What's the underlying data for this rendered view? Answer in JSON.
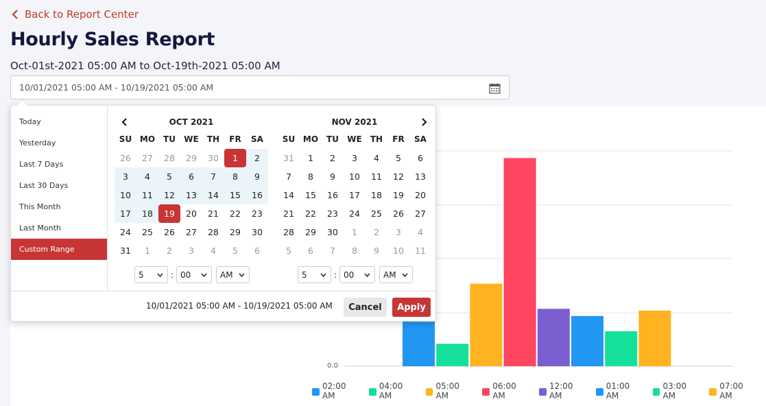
{
  "header": {
    "back_label": "Back to Report Center",
    "title": "Hourly Sales Report",
    "subtitle": "Oct-01st-2021 05:00 AM to Oct-19th-2021 05:00 AM",
    "date_range_value": "10/01/2021 05:00 AM - 10/19/2021 05:00 AM",
    "icons": {
      "back": "chevron-left-icon",
      "calendar": "calendar-icon"
    }
  },
  "picker": {
    "ranges": [
      "Today",
      "Yesterday",
      "Last 7 Days",
      "Last 30 Days",
      "This Month",
      "Last Month",
      "Custom Range"
    ],
    "active_range": "Custom Range",
    "weekdays": [
      "SU",
      "MO",
      "TU",
      "WE",
      "TH",
      "FR",
      "SA"
    ],
    "left_month": {
      "label": "OCT 2021",
      "days": [
        [
          "26",
          "off"
        ],
        [
          "27",
          "off"
        ],
        [
          "28",
          "off"
        ],
        [
          "29",
          "off"
        ],
        [
          "30",
          "off"
        ],
        [
          "1",
          "sel"
        ],
        [
          "2",
          "inrange"
        ],
        [
          "3",
          "inrange"
        ],
        [
          "4",
          "inrange"
        ],
        [
          "5",
          "inrange"
        ],
        [
          "6",
          "inrange"
        ],
        [
          "7",
          "inrange"
        ],
        [
          "8",
          "inrange"
        ],
        [
          "9",
          "inrange"
        ],
        [
          "10",
          "inrange"
        ],
        [
          "11",
          "inrange"
        ],
        [
          "12",
          "inrange"
        ],
        [
          "13",
          "inrange"
        ],
        [
          "14",
          "inrange"
        ],
        [
          "15",
          "inrange"
        ],
        [
          "16",
          "inrange"
        ],
        [
          "17",
          "inrange"
        ],
        [
          "18",
          "inrange"
        ],
        [
          "19",
          "sel"
        ],
        [
          "20",
          ""
        ],
        [
          "21",
          ""
        ],
        [
          "22",
          ""
        ],
        [
          "23",
          ""
        ],
        [
          "24",
          ""
        ],
        [
          "25",
          ""
        ],
        [
          "26",
          ""
        ],
        [
          "27",
          ""
        ],
        [
          "28",
          ""
        ],
        [
          "29",
          ""
        ],
        [
          "30",
          ""
        ],
        [
          "31",
          ""
        ],
        [
          "1",
          "off"
        ],
        [
          "2",
          "off"
        ],
        [
          "3",
          "off"
        ],
        [
          "4",
          "off"
        ],
        [
          "5",
          "off"
        ],
        [
          "6",
          "off"
        ]
      ],
      "hour": "5",
      "minute": "00",
      "ampm": "AM"
    },
    "right_month": {
      "label": "NOV 2021",
      "days": [
        [
          "31",
          "off"
        ],
        [
          "1",
          ""
        ],
        [
          "2",
          ""
        ],
        [
          "3",
          ""
        ],
        [
          "4",
          ""
        ],
        [
          "5",
          ""
        ],
        [
          "6",
          ""
        ],
        [
          "7",
          ""
        ],
        [
          "8",
          ""
        ],
        [
          "9",
          ""
        ],
        [
          "10",
          ""
        ],
        [
          "11",
          ""
        ],
        [
          "12",
          ""
        ],
        [
          "13",
          ""
        ],
        [
          "14",
          ""
        ],
        [
          "15",
          ""
        ],
        [
          "16",
          ""
        ],
        [
          "17",
          ""
        ],
        [
          "18",
          ""
        ],
        [
          "19",
          ""
        ],
        [
          "20",
          ""
        ],
        [
          "21",
          ""
        ],
        [
          "22",
          ""
        ],
        [
          "23",
          ""
        ],
        [
          "24",
          ""
        ],
        [
          "25",
          ""
        ],
        [
          "26",
          ""
        ],
        [
          "27",
          ""
        ],
        [
          "28",
          ""
        ],
        [
          "29",
          ""
        ],
        [
          "30",
          ""
        ],
        [
          "1",
          "off"
        ],
        [
          "2",
          "off"
        ],
        [
          "3",
          "off"
        ],
        [
          "4",
          "off"
        ],
        [
          "5",
          "off"
        ],
        [
          "6",
          "off"
        ],
        [
          "7",
          "off"
        ],
        [
          "8",
          "off"
        ],
        [
          "9",
          "off"
        ],
        [
          "10",
          "off"
        ],
        [
          "11",
          "off"
        ]
      ],
      "hour": "5",
      "minute": "00",
      "ampm": "AM"
    },
    "footer_range": "10/01/2021 05:00 AM - 10/19/2021 05:00 AM",
    "cancel_label": "Cancel",
    "apply_label": "Apply",
    "icons": {
      "prev": "chevron-left-icon",
      "next": "chevron-right-icon"
    }
  },
  "colors": {
    "accent": "#c73535",
    "in_range": "#ebf4f8"
  },
  "chart_data": {
    "type": "bar",
    "categories": [
      "02:00 AM",
      "04:00 AM",
      "05:00 AM",
      "06:00 AM",
      "12:00 AM",
      "01:00 AM",
      "03:00 AM",
      "07:00 AM"
    ],
    "values": [
      3.6,
      1.25,
      4.6,
      11.6,
      3.2,
      2.8,
      1.95,
      3.1
    ],
    "colors": [
      "#2196f3",
      "#14e09a",
      "#ffb320",
      "#ff4560",
      "#7b5ecf",
      "#2196f3",
      "#14e09a",
      "#ffb320"
    ],
    "ylim": [
      0,
      12
    ],
    "y_tick_label": "0.0",
    "grid": true,
    "legend": "bottom",
    "note": "upper portion partially covered by date picker overlay"
  }
}
